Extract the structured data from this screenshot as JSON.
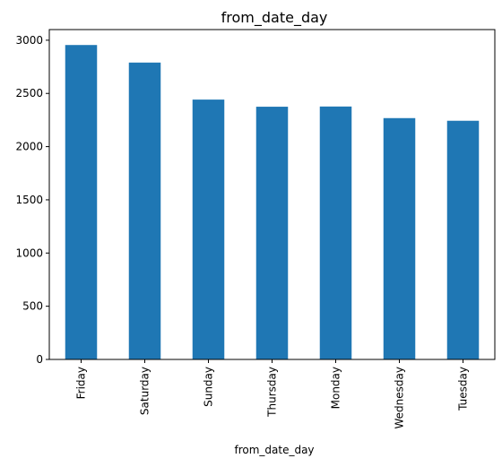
{
  "chart_data": {
    "type": "bar",
    "title": "from_date_day",
    "xlabel": "from_date_day",
    "ylabel": "",
    "categories": [
      "Friday",
      "Saturday",
      "Sunday",
      "Thursday",
      "Monday",
      "Wednesday",
      "Tuesday"
    ],
    "values": [
      2955,
      2790,
      2442,
      2375,
      2377,
      2268,
      2243
    ],
    "ylim": [
      0,
      3100
    ],
    "yticks": [
      0,
      500,
      1000,
      1500,
      2000,
      2500,
      3000
    ],
    "grid": false,
    "bar_color": "#1f77b4"
  }
}
